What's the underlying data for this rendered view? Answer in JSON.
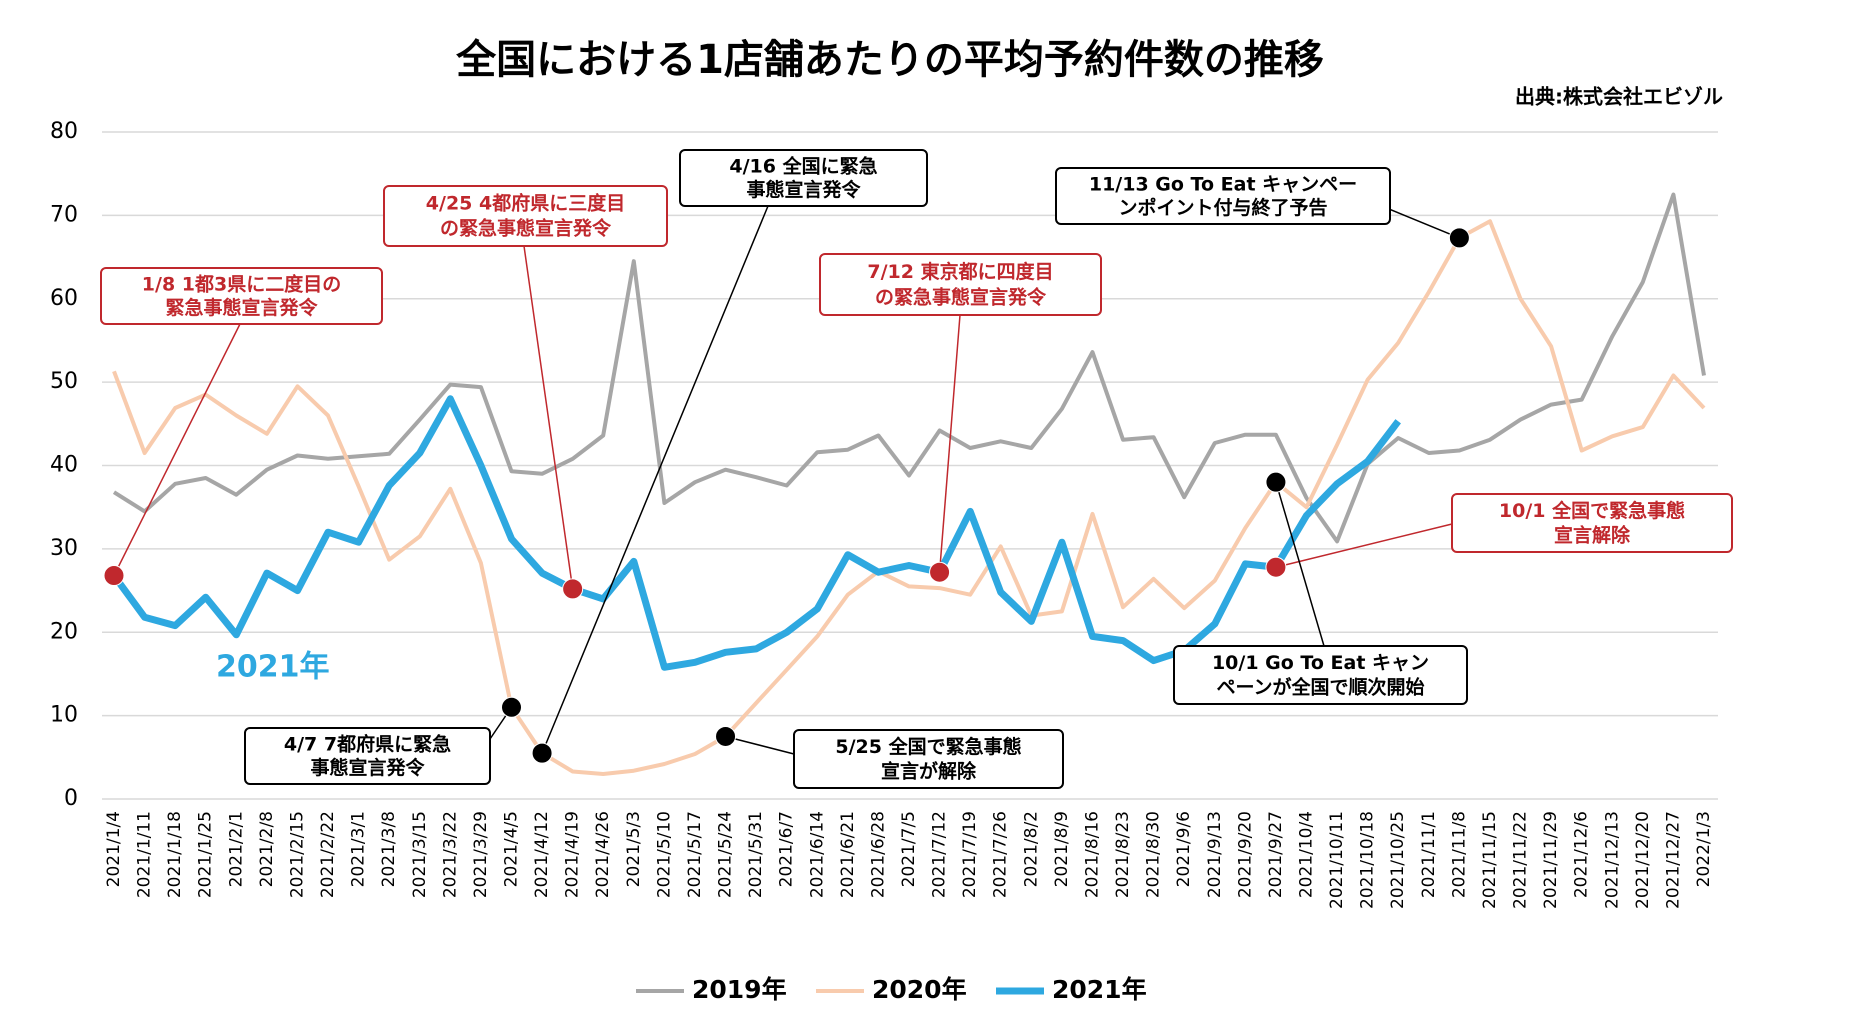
{
  "chart_data": {
    "type": "line",
    "title": "全国における1店舗あたりの平均予約件数の推移",
    "source": "出典:株式会社エビゾル",
    "categories": [
      "2021/1/4",
      "2021/1/11",
      "2021/1/18",
      "2021/1/25",
      "2021/2/1",
      "2021/2/8",
      "2021/2/15",
      "2021/2/22",
      "2021/3/1",
      "2021/3/8",
      "2021/3/15",
      "2021/3/22",
      "2021/3/29",
      "2021/4/5",
      "2021/4/12",
      "2021/4/19",
      "2021/4/26",
      "2021/5/3",
      "2021/5/10",
      "2021/5/17",
      "2021/5/24",
      "2021/5/31",
      "2021/6/7",
      "2021/6/14",
      "2021/6/21",
      "2021/6/28",
      "2021/7/5",
      "2021/7/12",
      "2021/7/19",
      "2021/7/26",
      "2021/8/2",
      "2021/8/9",
      "2021/8/16",
      "2021/8/23",
      "2021/8/30",
      "2021/9/6",
      "2021/9/13",
      "2021/9/20",
      "2021/9/27",
      "2021/10/4",
      "2021/10/11",
      "2021/10/18",
      "2021/10/25",
      "2021/11/1",
      "2021/11/8",
      "2021/11/15",
      "2021/11/22",
      "2021/11/29",
      "2021/12/6",
      "2021/12/13",
      "2021/12/20",
      "2021/12/27",
      "2022/1/3"
    ],
    "series": [
      {
        "name": "2019年",
        "color": "#a6a6a6",
        "width": 4,
        "values": [
          36.8,
          34.5,
          37.8,
          38.5,
          36.5,
          39.5,
          41.2,
          40.8,
          41.1,
          41.4,
          45.5,
          49.7,
          49.4,
          39.3,
          39,
          40.8,
          43.6,
          64.5,
          35.5,
          38,
          39.5,
          38.6,
          37.6,
          41.6,
          41.9,
          43.6,
          38.8,
          44.2,
          42.1,
          42.9,
          42.1,
          46.8,
          53.6,
          43.1,
          43.4,
          36.2,
          42.7,
          43.7,
          43.7,
          36.1,
          30.9,
          40.2,
          43.3,
          41.5,
          41.8,
          43.1,
          45.5,
          47.3,
          47.9,
          55.5,
          62,
          72.5,
          50.8
        ]
      },
      {
        "name": "2020年",
        "color": "#f8cbad",
        "width": 4,
        "values": [
          51.3,
          41.5,
          46.9,
          48.5,
          46,
          43.8,
          49.5,
          46,
          37.5,
          28.7,
          31.5,
          37.2,
          28.3,
          11,
          5.5,
          3.3,
          3,
          3.4,
          4.2,
          5.4,
          7.5,
          11.5,
          15.5,
          19.5,
          24.5,
          27.3,
          25.5,
          25.3,
          24.5,
          30.3,
          22,
          22.5,
          34.2,
          23,
          26.4,
          22.9,
          26.2,
          32.5,
          38,
          35,
          42.5,
          50.3,
          54.7,
          60.8,
          67.3,
          69.3,
          60,
          54.3,
          41.8,
          43.5,
          44.6,
          50.8,
          46.9
        ]
      },
      {
        "name": "2021年",
        "color": "#2ea8e0",
        "width": 7,
        "values": [
          26.8,
          21.8,
          20.8,
          24.2,
          19.7,
          27.1,
          25,
          32,
          30.8,
          37.6,
          41.5,
          48,
          40,
          31.2,
          27.1,
          25.2,
          24,
          28.5,
          15.8,
          16.4,
          17.6,
          18,
          20,
          22.8,
          29.3,
          27.2,
          28,
          27.2,
          34.5,
          24.8,
          21.3,
          30.8,
          19.5,
          19,
          16.6,
          17.8,
          21,
          28.2,
          27.8,
          34,
          37.8,
          40.5,
          45.3,
          null,
          null,
          null,
          null,
          null,
          null,
          null,
          null,
          null,
          null
        ]
      }
    ],
    "ylim": [
      0,
      80
    ],
    "yticks": [
      0,
      10,
      20,
      30,
      40,
      50,
      60,
      70,
      80
    ],
    "grid": true,
    "legend": "bottom",
    "annotations": [
      {
        "lines": [
          "1/8  1都3県に二度目の",
          "緊急事態宣言発令"
        ],
        "color": "#c0282d"
      },
      {
        "lines": [
          "4/25  4都府県に三度目",
          "の緊急事態宣言発令"
        ],
        "color": "#c0282d"
      },
      {
        "lines": [
          "4/16  全国に緊急",
          "事態宣言発令"
        ],
        "color": "#000000"
      },
      {
        "lines": [
          "7/12  東京都に四度目",
          "の緊急事態宣言発令"
        ],
        "color": "#c0282d"
      },
      {
        "lines": [
          "11/13  Go To Eat キャンペー",
          "ンポイント付与終了予告"
        ],
        "color": "#000000"
      },
      {
        "lines": [
          "10/1  全国で緊急事態",
          "宣言解除"
        ],
        "color": "#c0282d"
      },
      {
        "lines": [
          "10/1  Go To Eat キャン",
          "ペーンが全国で順次開始"
        ],
        "color": "#000000"
      },
      {
        "lines": [
          "4/7  7都府県に緊急",
          "事態宣言発令"
        ],
        "color": "#000000"
      },
      {
        "lines": [
          "5/25  全国で緊急事態",
          "宣言が解除"
        ],
        "color": "#000000"
      }
    ]
  }
}
